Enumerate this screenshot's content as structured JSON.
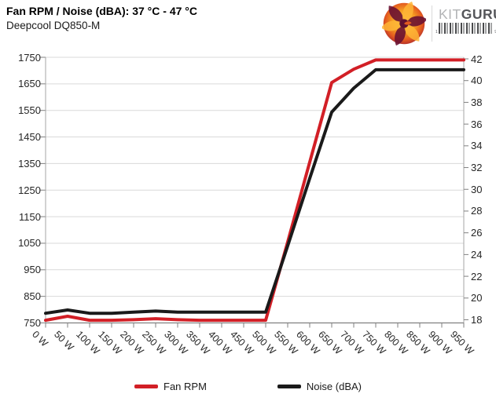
{
  "header": {
    "title": "Fan RPM / Noise (dBA): 37 °C - 47 °C",
    "subtitle": "Deepcool DQ850-M"
  },
  "logo": {
    "kit": "KIT",
    "guru": "GURU",
    "barcode_left_digit": "1",
    "barcode_right_digit": "9"
  },
  "chart_data": {
    "type": "line",
    "title": "Fan RPM / Noise (dBA): 37 °C - 47 °C",
    "subtitle": "Deepcool DQ850-M",
    "categories": [
      "0 W",
      "50 W",
      "100 W",
      "150 W",
      "200 W",
      "250 W",
      "300 W",
      "350 W",
      "400 W",
      "450 W",
      "500 W",
      "550 W",
      "600 W",
      "650 W",
      "700 W",
      "750 W",
      "800 W",
      "850 W",
      "900 W",
      "950 W"
    ],
    "series": [
      {
        "name": "Fan RPM",
        "axis": "left",
        "color": "#d21f26",
        "values": [
          760,
          775,
          760,
          760,
          762,
          766,
          762,
          760,
          760,
          760,
          760,
          1055,
          1355,
          1655,
          1705,
          1740,
          1740,
          1740,
          1740,
          1740
        ]
      },
      {
        "name": "Noise (dBA)",
        "axis": "right",
        "color": "#1a1a1a",
        "values": [
          18.6,
          18.9,
          18.6,
          18.6,
          18.7,
          18.8,
          18.7,
          18.7,
          18.7,
          18.7,
          18.7,
          24.8,
          31.0,
          37.1,
          39.3,
          41.0,
          41.0,
          41.0,
          41.0,
          41.0
        ]
      }
    ],
    "left_axis": {
      "label": "Fan RPM",
      "min": 750,
      "max": 1750,
      "step": 100,
      "ticks": [
        1750,
        1650,
        1550,
        1450,
        1350,
        1250,
        1150,
        1050,
        950,
        850,
        750
      ]
    },
    "right_axis": {
      "label": "Noise (dBA)",
      "min": 18,
      "max": 42,
      "step": 2,
      "ticks": [
        42,
        40,
        38,
        36,
        34,
        32,
        30,
        28,
        26,
        24,
        22,
        20,
        18
      ]
    },
    "grid": {
      "horizontal": true,
      "vertical": false
    },
    "legend_position": "bottom",
    "colors": {
      "grid": "#d9d9d9",
      "axis": "#808080",
      "text": "#262626"
    }
  },
  "legend": {
    "items": [
      {
        "label": "Fan RPM",
        "color": "#d21f26"
      },
      {
        "label": "Noise (dBA)",
        "color": "#1a1a1a"
      }
    ]
  }
}
